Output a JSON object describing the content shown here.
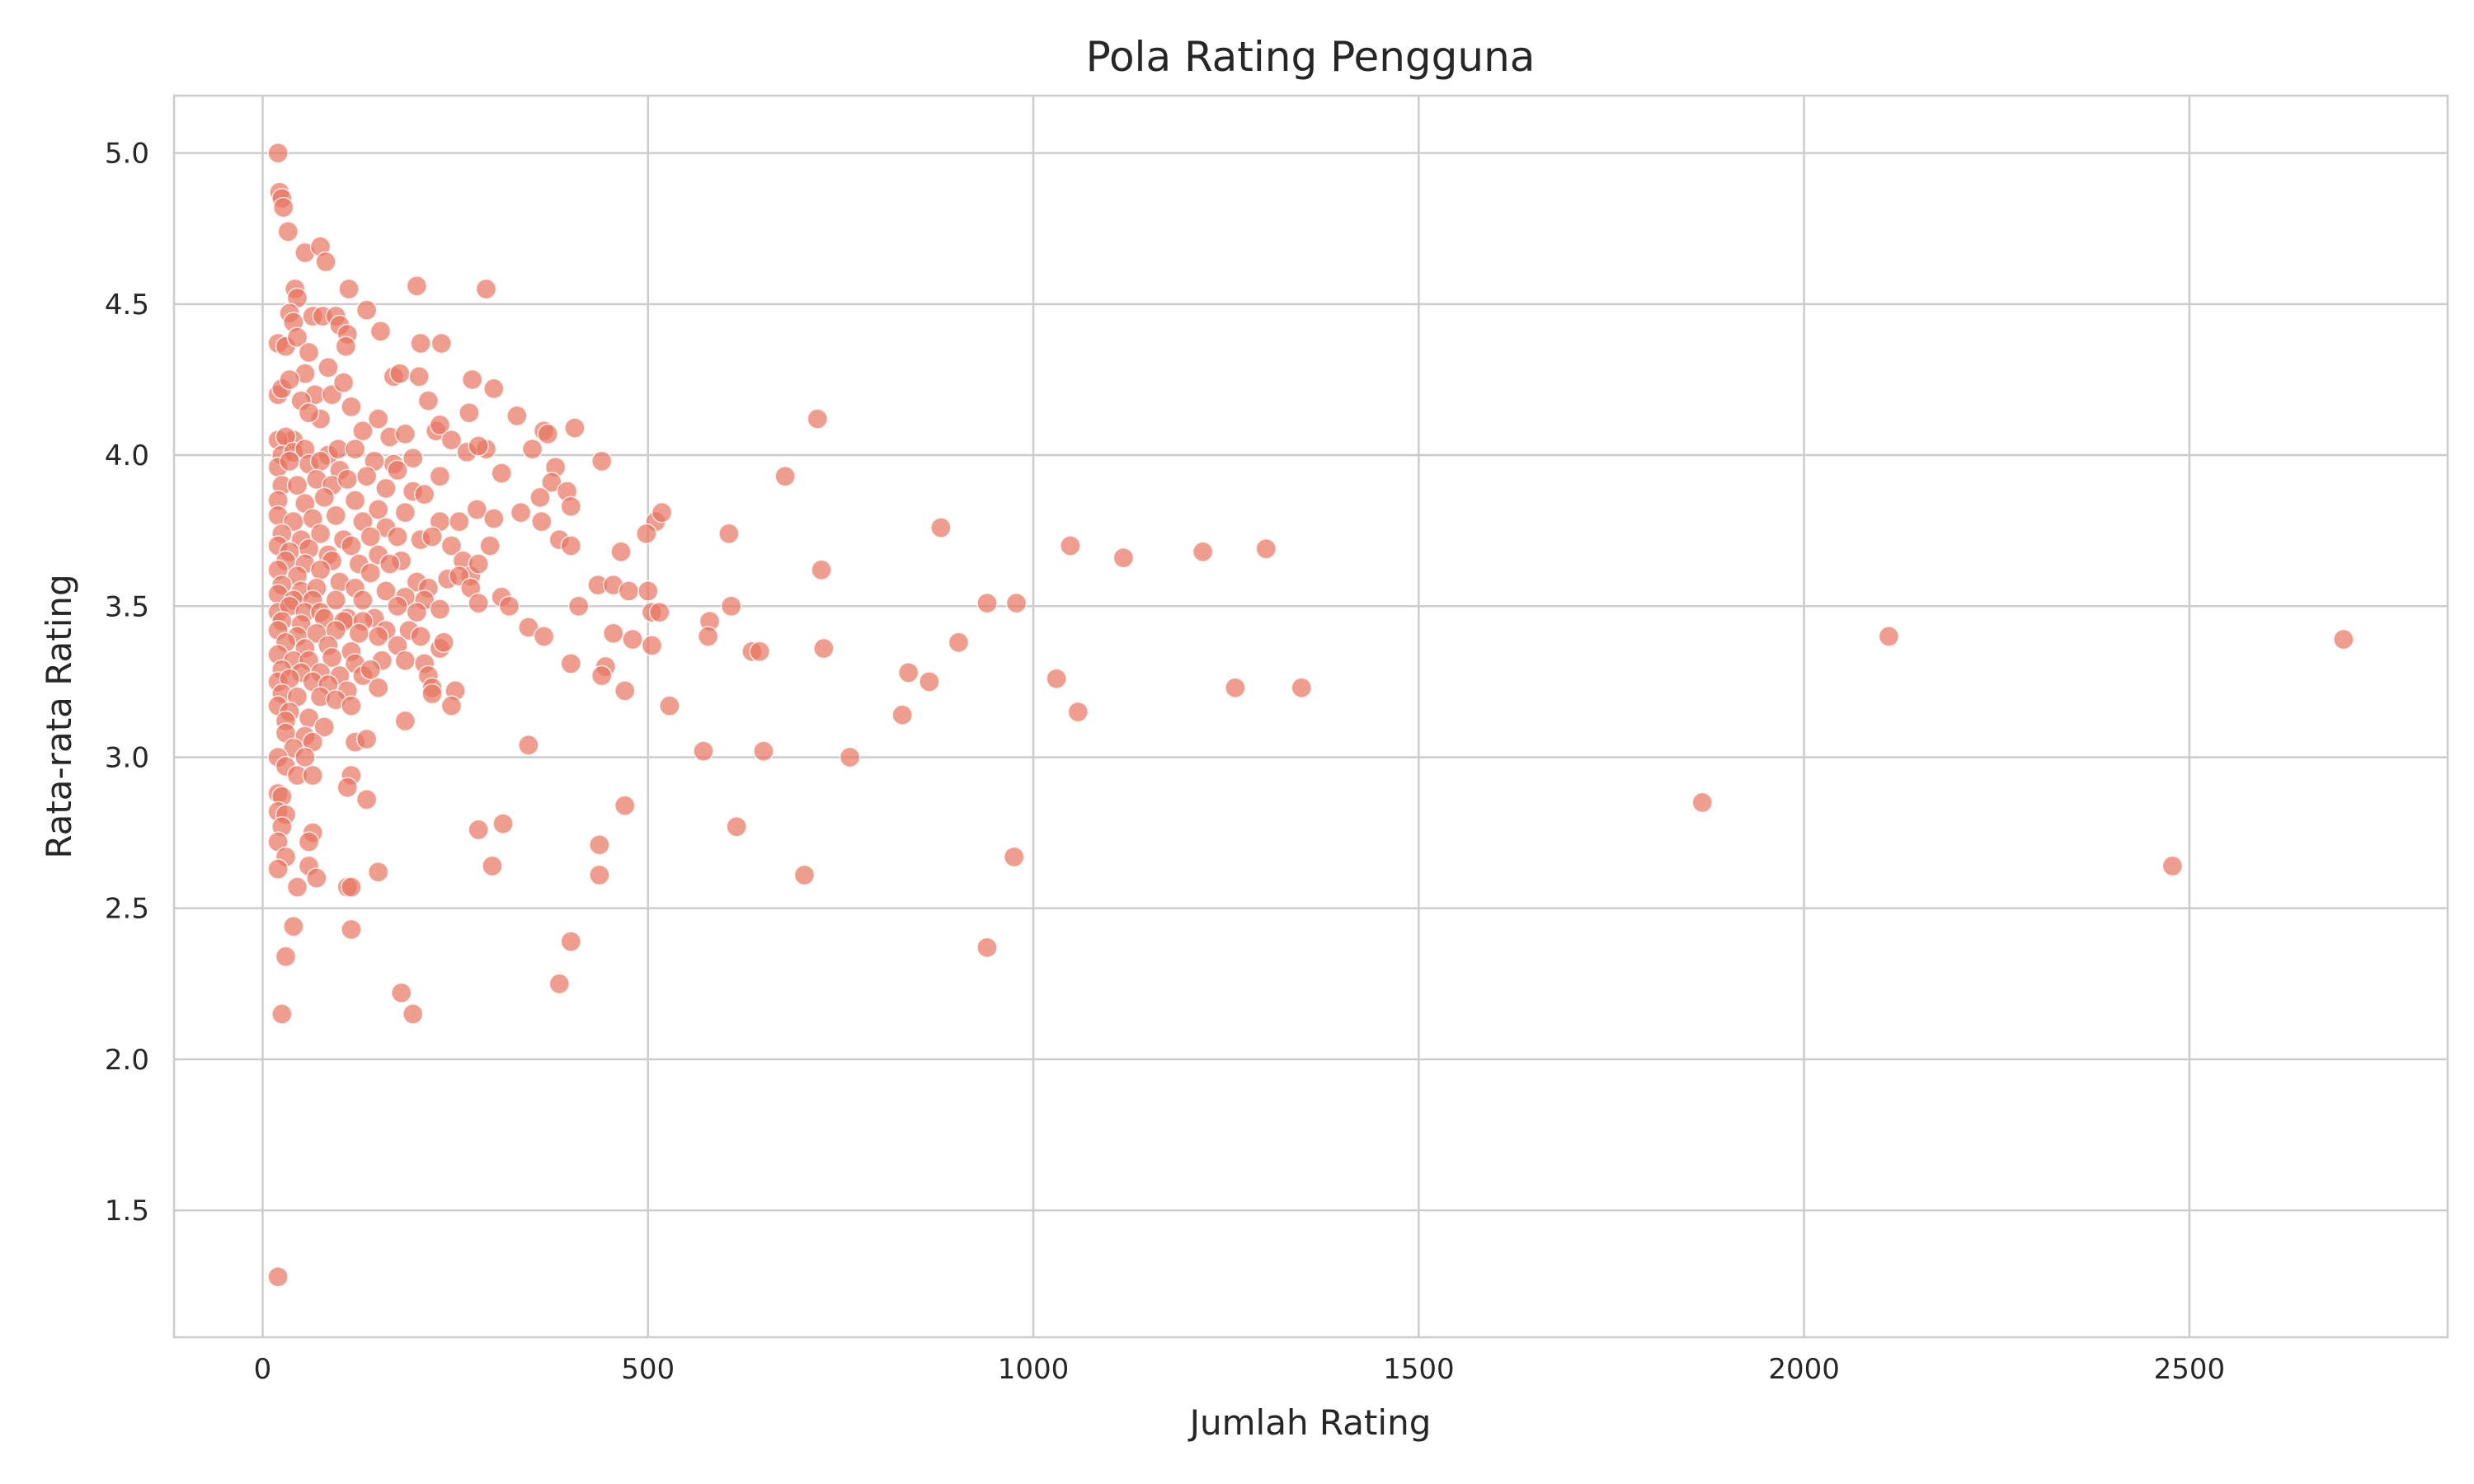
{
  "chart_data": {
    "type": "scatter",
    "title": "Pola Rating Pengguna",
    "xlabel": "Jumlah Rating",
    "ylabel": "Rata-rata Rating",
    "xlim": [
      -115,
      2835
    ],
    "ylim": [
      1.08,
      5.19
    ],
    "xticks": [
      0,
      500,
      1000,
      1500,
      2000,
      2500
    ],
    "yticks": [
      1.5,
      2.0,
      2.5,
      3.0,
      3.5,
      4.0,
      4.5,
      5.0
    ],
    "xtick_labels": [
      "0",
      "500",
      "1000",
      "1500",
      "2000",
      "2500"
    ],
    "ytick_labels": [
      "1.5",
      "2.0",
      "2.5",
      "3.0",
      "3.5",
      "4.0",
      "4.5",
      "5.0"
    ],
    "grid": true,
    "color": "#e8735f",
    "points": [
      [
        20,
        5.0
      ],
      [
        22,
        4.87
      ],
      [
        25,
        4.85
      ],
      [
        27,
        4.82
      ],
      [
        33,
        4.74
      ],
      [
        55,
        4.67
      ],
      [
        75,
        4.69
      ],
      [
        82,
        4.64
      ],
      [
        42,
        4.55
      ],
      [
        45,
        4.52
      ],
      [
        290,
        4.55
      ],
      [
        200,
        4.56
      ],
      [
        112,
        4.55
      ],
      [
        35,
        4.47
      ],
      [
        40,
        4.44
      ],
      [
        65,
        4.46
      ],
      [
        78,
        4.46
      ],
      [
        95,
        4.46
      ],
      [
        100,
        4.43
      ],
      [
        110,
        4.4
      ],
      [
        135,
        4.48
      ],
      [
        153,
        4.41
      ],
      [
        205,
        4.37
      ],
      [
        232,
        4.37
      ],
      [
        20,
        4.37
      ],
      [
        30,
        4.36
      ],
      [
        45,
        4.39
      ],
      [
        60,
        4.34
      ],
      [
        108,
        4.36
      ],
      [
        85,
        4.29
      ],
      [
        55,
        4.27
      ],
      [
        170,
        4.26
      ],
      [
        178,
        4.27
      ],
      [
        203,
        4.26
      ],
      [
        272,
        4.25
      ],
      [
        300,
        4.22
      ],
      [
        68,
        4.2
      ],
      [
        90,
        4.2
      ],
      [
        20,
        4.2
      ],
      [
        25,
        4.22
      ],
      [
        105,
        4.24
      ],
      [
        35,
        4.25
      ],
      [
        50,
        4.18
      ],
      [
        115,
        4.16
      ],
      [
        215,
        4.18
      ],
      [
        268,
        4.14
      ],
      [
        330,
        4.13
      ],
      [
        365,
        4.08
      ],
      [
        370,
        4.07
      ],
      [
        405,
        4.09
      ],
      [
        720,
        4.12
      ],
      [
        150,
        4.12
      ],
      [
        75,
        4.12
      ],
      [
        60,
        4.14
      ],
      [
        165,
        4.06
      ],
      [
        225,
        4.08
      ],
      [
        230,
        4.1
      ],
      [
        130,
        4.08
      ],
      [
        40,
        4.05
      ],
      [
        20,
        4.05
      ],
      [
        30,
        4.06
      ],
      [
        25,
        4.0
      ],
      [
        40,
        4.01
      ],
      [
        55,
        4.02
      ],
      [
        85,
        4.0
      ],
      [
        98,
        4.02
      ],
      [
        120,
        4.02
      ],
      [
        170,
        3.97
      ],
      [
        185,
        4.07
      ],
      [
        195,
        3.99
      ],
      [
        245,
        4.05
      ],
      [
        265,
        4.01
      ],
      [
        290,
        4.02
      ],
      [
        280,
        4.03
      ],
      [
        350,
        4.02
      ],
      [
        380,
        3.96
      ],
      [
        440,
        3.98
      ],
      [
        20,
        3.96
      ],
      [
        35,
        3.98
      ],
      [
        60,
        3.97
      ],
      [
        75,
        3.98
      ],
      [
        100,
        3.95
      ],
      [
        145,
        3.98
      ],
      [
        175,
        3.95
      ],
      [
        230,
        3.93
      ],
      [
        310,
        3.94
      ],
      [
        678,
        3.93
      ],
      [
        25,
        3.9
      ],
      [
        45,
        3.9
      ],
      [
        70,
        3.92
      ],
      [
        90,
        3.9
      ],
      [
        110,
        3.92
      ],
      [
        135,
        3.93
      ],
      [
        160,
        3.89
      ],
      [
        195,
        3.88
      ],
      [
        210,
        3.87
      ],
      [
        375,
        3.91
      ],
      [
        395,
        3.88
      ],
      [
        360,
        3.86
      ],
      [
        20,
        3.85
      ],
      [
        55,
        3.84
      ],
      [
        80,
        3.86
      ],
      [
        120,
        3.85
      ],
      [
        150,
        3.82
      ],
      [
        185,
        3.81
      ],
      [
        278,
        3.82
      ],
      [
        300,
        3.79
      ],
      [
        335,
        3.81
      ],
      [
        400,
        3.83
      ],
      [
        510,
        3.78
      ],
      [
        518,
        3.81
      ],
      [
        498,
        3.74
      ],
      [
        20,
        3.8
      ],
      [
        40,
        3.78
      ],
      [
        65,
        3.79
      ],
      [
        95,
        3.8
      ],
      [
        130,
        3.78
      ],
      [
        160,
        3.76
      ],
      [
        230,
        3.78
      ],
      [
        255,
        3.78
      ],
      [
        362,
        3.78
      ],
      [
        605,
        3.74
      ],
      [
        880,
        3.76
      ],
      [
        25,
        3.74
      ],
      [
        50,
        3.72
      ],
      [
        75,
        3.74
      ],
      [
        105,
        3.72
      ],
      [
        140,
        3.73
      ],
      [
        175,
        3.73
      ],
      [
        205,
        3.72
      ],
      [
        220,
        3.73
      ],
      [
        385,
        3.72
      ],
      [
        400,
        3.7
      ],
      [
        1048,
        3.7
      ],
      [
        1302,
        3.69
      ],
      [
        1220,
        3.68
      ],
      [
        1117,
        3.66
      ],
      [
        20,
        3.7
      ],
      [
        35,
        3.68
      ],
      [
        60,
        3.69
      ],
      [
        85,
        3.67
      ],
      [
        115,
        3.7
      ],
      [
        150,
        3.67
      ],
      [
        180,
        3.65
      ],
      [
        245,
        3.7
      ],
      [
        260,
        3.65
      ],
      [
        295,
        3.7
      ],
      [
        465,
        3.68
      ],
      [
        30,
        3.65
      ],
      [
        55,
        3.64
      ],
      [
        90,
        3.65
      ],
      [
        125,
        3.64
      ],
      [
        165,
        3.64
      ],
      [
        270,
        3.6
      ],
      [
        280,
        3.64
      ],
      [
        725,
        3.62
      ],
      [
        20,
        3.62
      ],
      [
        45,
        3.6
      ],
      [
        75,
        3.62
      ],
      [
        100,
        3.58
      ],
      [
        140,
        3.61
      ],
      [
        200,
        3.58
      ],
      [
        240,
        3.59
      ],
      [
        255,
        3.6
      ],
      [
        25,
        3.57
      ],
      [
        50,
        3.55
      ],
      [
        70,
        3.56
      ],
      [
        120,
        3.56
      ],
      [
        160,
        3.55
      ],
      [
        215,
        3.56
      ],
      [
        270,
        3.56
      ],
      [
        435,
        3.57
      ],
      [
        455,
        3.57
      ],
      [
        500,
        3.55
      ],
      [
        20,
        3.54
      ],
      [
        40,
        3.52
      ],
      [
        65,
        3.52
      ],
      [
        95,
        3.52
      ],
      [
        130,
        3.52
      ],
      [
        185,
        3.53
      ],
      [
        210,
        3.52
      ],
      [
        280,
        3.51
      ],
      [
        310,
        3.53
      ],
      [
        320,
        3.5
      ],
      [
        410,
        3.5
      ],
      [
        475,
        3.55
      ],
      [
        608,
        3.5
      ],
      [
        940,
        3.51
      ],
      [
        978,
        3.51
      ],
      [
        20,
        3.48
      ],
      [
        35,
        3.5
      ],
      [
        55,
        3.48
      ],
      [
        75,
        3.48
      ],
      [
        110,
        3.46
      ],
      [
        145,
        3.46
      ],
      [
        175,
        3.5
      ],
      [
        200,
        3.48
      ],
      [
        230,
        3.49
      ],
      [
        505,
        3.48
      ],
      [
        515,
        3.48
      ],
      [
        580,
        3.45
      ],
      [
        25,
        3.45
      ],
      [
        50,
        3.44
      ],
      [
        80,
        3.46
      ],
      [
        105,
        3.45
      ],
      [
        130,
        3.45
      ],
      [
        160,
        3.42
      ],
      [
        190,
        3.42
      ],
      [
        345,
        3.43
      ],
      [
        20,
        3.42
      ],
      [
        45,
        3.4
      ],
      [
        70,
        3.41
      ],
      [
        95,
        3.42
      ],
      [
        125,
        3.41
      ],
      [
        150,
        3.4
      ],
      [
        205,
        3.4
      ],
      [
        365,
        3.4
      ],
      [
        455,
        3.41
      ],
      [
        480,
        3.39
      ],
      [
        578,
        3.4
      ],
      [
        2110,
        3.4
      ],
      [
        2700,
        3.39
      ],
      [
        30,
        3.38
      ],
      [
        55,
        3.36
      ],
      [
        85,
        3.37
      ],
      [
        115,
        3.35
      ],
      [
        175,
        3.37
      ],
      [
        230,
        3.36
      ],
      [
        235,
        3.38
      ],
      [
        505,
        3.37
      ],
      [
        635,
        3.35
      ],
      [
        645,
        3.35
      ],
      [
        728,
        3.36
      ],
      [
        903,
        3.38
      ],
      [
        20,
        3.34
      ],
      [
        40,
        3.32
      ],
      [
        60,
        3.32
      ],
      [
        90,
        3.33
      ],
      [
        120,
        3.31
      ],
      [
        155,
        3.32
      ],
      [
        185,
        3.32
      ],
      [
        210,
        3.31
      ],
      [
        400,
        3.31
      ],
      [
        445,
        3.3
      ],
      [
        25,
        3.29
      ],
      [
        50,
        3.28
      ],
      [
        75,
        3.28
      ],
      [
        100,
        3.27
      ],
      [
        130,
        3.27
      ],
      [
        140,
        3.29
      ],
      [
        215,
        3.27
      ],
      [
        440,
        3.27
      ],
      [
        838,
        3.28
      ],
      [
        865,
        3.25
      ],
      [
        1030,
        3.26
      ],
      [
        20,
        3.25
      ],
      [
        35,
        3.26
      ],
      [
        65,
        3.25
      ],
      [
        85,
        3.24
      ],
      [
        110,
        3.22
      ],
      [
        150,
        3.23
      ],
      [
        220,
        3.23
      ],
      [
        250,
        3.22
      ],
      [
        470,
        3.22
      ],
      [
        1262,
        3.23
      ],
      [
        1348,
        3.23
      ],
      [
        25,
        3.21
      ],
      [
        45,
        3.2
      ],
      [
        75,
        3.2
      ],
      [
        95,
        3.19
      ],
      [
        115,
        3.17
      ],
      [
        220,
        3.21
      ],
      [
        245,
        3.17
      ],
      [
        528,
        3.17
      ],
      [
        1058,
        3.15
      ],
      [
        830,
        3.14
      ],
      [
        20,
        3.17
      ],
      [
        35,
        3.15
      ],
      [
        60,
        3.13
      ],
      [
        30,
        3.12
      ],
      [
        80,
        3.1
      ],
      [
        185,
        3.12
      ],
      [
        30,
        3.08
      ],
      [
        55,
        3.07
      ],
      [
        65,
        3.05
      ],
      [
        120,
        3.05
      ],
      [
        135,
        3.06
      ],
      [
        345,
        3.04
      ],
      [
        40,
        3.03
      ],
      [
        20,
        3.0
      ],
      [
        55,
        3.0
      ],
      [
        572,
        3.02
      ],
      [
        650,
        3.02
      ],
      [
        762,
        3.0
      ],
      [
        30,
        2.97
      ],
      [
        45,
        2.94
      ],
      [
        65,
        2.94
      ],
      [
        115,
        2.94
      ],
      [
        20,
        2.88
      ],
      [
        25,
        2.87
      ],
      [
        110,
        2.9
      ],
      [
        135,
        2.86
      ],
      [
        470,
        2.84
      ],
      [
        1868,
        2.85
      ],
      [
        20,
        2.82
      ],
      [
        30,
        2.81
      ],
      [
        25,
        2.77
      ],
      [
        65,
        2.75
      ],
      [
        280,
        2.76
      ],
      [
        312,
        2.78
      ],
      [
        20,
        2.72
      ],
      [
        60,
        2.72
      ],
      [
        437,
        2.71
      ],
      [
        615,
        2.77
      ],
      [
        30,
        2.67
      ],
      [
        975,
        2.67
      ],
      [
        20,
        2.63
      ],
      [
        60,
        2.64
      ],
      [
        70,
        2.6
      ],
      [
        150,
        2.62
      ],
      [
        298,
        2.64
      ],
      [
        437,
        2.61
      ],
      [
        703,
        2.61
      ],
      [
        2478,
        2.64
      ],
      [
        45,
        2.57
      ],
      [
        110,
        2.57
      ],
      [
        115,
        2.57
      ],
      [
        40,
        2.44
      ],
      [
        115,
        2.43
      ],
      [
        30,
        2.34
      ],
      [
        400,
        2.39
      ],
      [
        940,
        2.37
      ],
      [
        180,
        2.22
      ],
      [
        385,
        2.25
      ],
      [
        25,
        2.15
      ],
      [
        195,
        2.15
      ],
      [
        20,
        1.28
      ]
    ]
  }
}
